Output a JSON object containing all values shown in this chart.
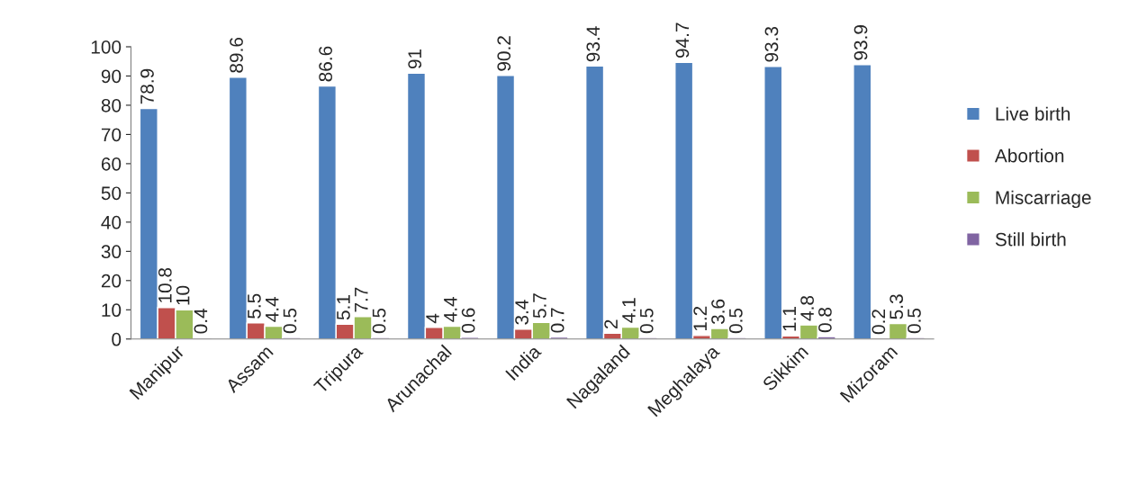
{
  "chart_data": {
    "type": "bar",
    "categories": [
      "Manipur",
      "Assam",
      "Tripura",
      "Arunachal",
      "India",
      "Nagaland",
      "Meghalaya",
      "Sikkim",
      "Mizoram"
    ],
    "series": [
      {
        "name": "Live birth",
        "color": "#4f81bd",
        "values": [
          78.9,
          89.6,
          86.6,
          91,
          90.2,
          93.4,
          94.7,
          93.3,
          93.9
        ]
      },
      {
        "name": "Abortion",
        "color": "#c0504d",
        "values": [
          10.8,
          5.5,
          5.1,
          4,
          3.4,
          2,
          1.2,
          1.1,
          0.2
        ]
      },
      {
        "name": "Miscarriage",
        "color": "#9bbb59",
        "values": [
          10,
          4.4,
          7.7,
          4.4,
          5.7,
          4.1,
          3.6,
          4.8,
          5.3
        ]
      },
      {
        "name": "Still birth",
        "color": "#8064a2",
        "values": [
          0.4,
          0.5,
          0.5,
          0.6,
          0.7,
          0.5,
          0.5,
          0.8,
          0.5
        ]
      }
    ],
    "ylim": [
      0,
      100
    ],
    "yticks": [
      0,
      10,
      20,
      30,
      40,
      50,
      60,
      70,
      80,
      90,
      100
    ],
    "data_labels": true,
    "grid": false,
    "legend": "right"
  }
}
